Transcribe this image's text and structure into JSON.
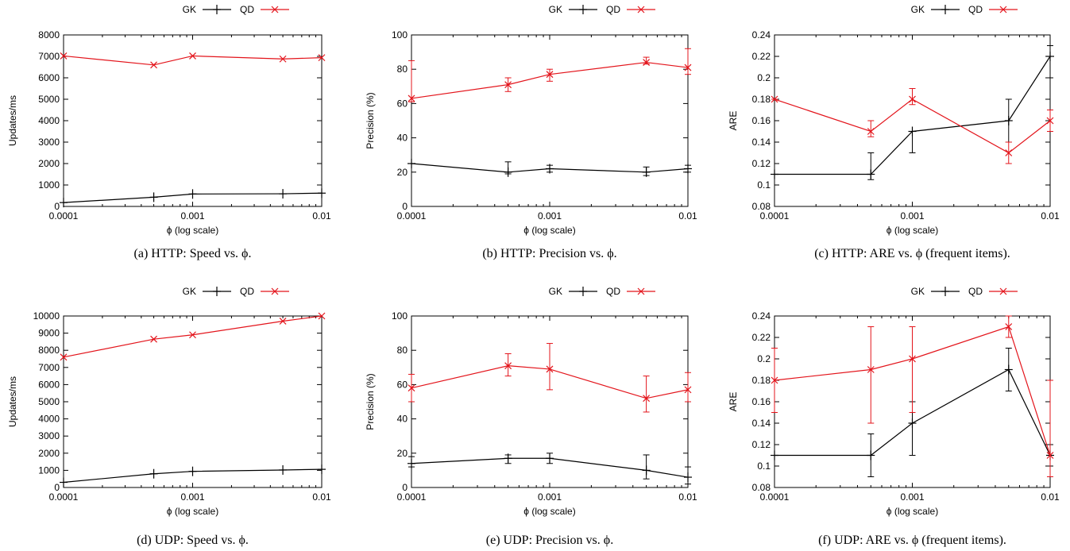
{
  "colors": {
    "gk": "#000000",
    "qd": "#e3141b",
    "axis": "#000000"
  },
  "legend": {
    "gk": "GK",
    "qd": "QD"
  },
  "chart_data": [
    {
      "type": "line",
      "caption": "(a)  HTTP: Speed vs. ϕ.",
      "xlabel": "ϕ (log scale)",
      "ylabel": "Updates/ms",
      "x_scale": "log",
      "xlim": [
        0.0001,
        0.01
      ],
      "ylim": [
        0,
        8000
      ],
      "x": [
        0.0001,
        0.0005,
        0.001,
        0.005,
        0.01
      ],
      "x_ticks": [
        "0.0001",
        "0.001",
        "0.01"
      ],
      "y_ticks": [
        "0",
        "1000",
        "2000",
        "3000",
        "4000",
        "5000",
        "6000",
        "7000",
        "8000"
      ],
      "series": [
        {
          "name": "GK",
          "values": [
            180,
            430,
            580,
            590,
            620
          ],
          "err": null
        },
        {
          "name": "QD",
          "values": [
            7020,
            6600,
            7020,
            6880,
            6940
          ],
          "err": null
        }
      ]
    },
    {
      "type": "line",
      "caption": "(b)  HTTP: Precision vs. ϕ.",
      "xlabel": "ϕ (log scale)",
      "ylabel": "Precision (%)",
      "x_scale": "log",
      "xlim": [
        0.0001,
        0.01
      ],
      "ylim": [
        0,
        100
      ],
      "x": [
        0.0001,
        0.0005,
        0.001,
        0.005,
        0.01
      ],
      "x_ticks": [
        "0.0001",
        "0.001",
        "0.01"
      ],
      "y_ticks": [
        "0",
        "20",
        "40",
        "60",
        "80",
        "100"
      ],
      "series": [
        {
          "name": "GK",
          "values": [
            25,
            20,
            22,
            20,
            22
          ],
          "err": [
            [
              25,
              25
            ],
            [
              19,
              26
            ],
            [
              20,
              24
            ],
            [
              18,
              23
            ],
            [
              20,
              24
            ]
          ]
        },
        {
          "name": "QD",
          "values": [
            63,
            71,
            77,
            84,
            81
          ],
          "err": [
            [
              61,
              85
            ],
            [
              67,
              75
            ],
            [
              73,
              80
            ],
            [
              83,
              87
            ],
            [
              77,
              92
            ]
          ]
        }
      ]
    },
    {
      "type": "line",
      "caption": "(c)  HTTP: ARE vs. ϕ (frequent items).",
      "xlabel": "ϕ (log scale)",
      "ylabel": "ARE",
      "x_scale": "log",
      "xlim": [
        0.0001,
        0.01
      ],
      "ylim": [
        0.08,
        0.24
      ],
      "x": [
        0.0001,
        0.0005,
        0.001,
        0.005,
        0.01
      ],
      "x_ticks": [
        "0.0001",
        "0.001",
        "0.01"
      ],
      "y_ticks": [
        "0.08",
        "0.1",
        "0.12",
        "0.14",
        "0.16",
        "0.18",
        "0.2",
        "0.22",
        "0.24"
      ],
      "series": [
        {
          "name": "GK",
          "values": [
            0.11,
            0.11,
            0.15,
            0.16,
            0.22
          ],
          "err": [
            [
              0.11,
              0.11
            ],
            [
              0.105,
              0.13
            ],
            [
              0.13,
              0.15
            ],
            [
              0.14,
              0.18
            ],
            [
              0.2,
              0.23
            ]
          ]
        },
        {
          "name": "QD",
          "values": [
            0.18,
            0.15,
            0.18,
            0.13,
            0.16
          ],
          "err": [
            [
              0.18,
              0.18
            ],
            [
              0.145,
              0.16
            ],
            [
              0.175,
              0.19
            ],
            [
              0.12,
              0.14
            ],
            [
              0.15,
              0.17
            ]
          ]
        }
      ]
    },
    {
      "type": "line",
      "caption": "(d)  UDP: Speed vs. ϕ.",
      "xlabel": "ϕ (log scale)",
      "ylabel": "Updates/ms",
      "x_scale": "log",
      "xlim": [
        0.0001,
        0.01
      ],
      "ylim": [
        0,
        10000
      ],
      "x": [
        0.0001,
        0.0005,
        0.001,
        0.005,
        0.01
      ],
      "x_ticks": [
        "0.0001",
        "0.001",
        "0.01"
      ],
      "y_ticks": [
        "0",
        "1000",
        "2000",
        "3000",
        "4000",
        "5000",
        "6000",
        "7000",
        "8000",
        "9000",
        "10000"
      ],
      "series": [
        {
          "name": "GK",
          "values": [
            300,
            800,
            940,
            1020,
            1060
          ],
          "err": null
        },
        {
          "name": "QD",
          "values": [
            7600,
            8650,
            8900,
            9700,
            10000
          ],
          "err": null
        }
      ]
    },
    {
      "type": "line",
      "caption": "(e)  UDP: Precision vs. ϕ.",
      "xlabel": "ϕ (log scale)",
      "ylabel": "Precision (%)",
      "x_scale": "log",
      "xlim": [
        0.0001,
        0.01
      ],
      "ylim": [
        0,
        100
      ],
      "x": [
        0.0001,
        0.0005,
        0.001,
        0.005,
        0.01
      ],
      "x_ticks": [
        "0.0001",
        "0.001",
        "0.01"
      ],
      "y_ticks": [
        "0",
        "20",
        "40",
        "60",
        "80",
        "100"
      ],
      "series": [
        {
          "name": "GK",
          "values": [
            14,
            17,
            17,
            10,
            6
          ],
          "err": [
            [
              12,
              18
            ],
            [
              14,
              19
            ],
            [
              14,
              20
            ],
            [
              5,
              19
            ],
            [
              2,
              12
            ]
          ]
        },
        {
          "name": "QD",
          "values": [
            58,
            71,
            69,
            52,
            57
          ],
          "err": [
            [
              50,
              66
            ],
            [
              65,
              78
            ],
            [
              57,
              84
            ],
            [
              44,
              65
            ],
            [
              50,
              67
            ]
          ]
        }
      ]
    },
    {
      "type": "line",
      "caption": "(f)  UDP: ARE vs. ϕ (frequent items).",
      "xlabel": "ϕ (log scale)",
      "ylabel": "ARE",
      "x_scale": "log",
      "xlim": [
        0.0001,
        0.01
      ],
      "ylim": [
        0.08,
        0.24
      ],
      "x": [
        0.0001,
        0.0005,
        0.001,
        0.005,
        0.01
      ],
      "x_ticks": [
        "0.0001",
        "0.001",
        "0.01"
      ],
      "y_ticks": [
        "0.08",
        "0.1",
        "0.12",
        "0.14",
        "0.16",
        "0.18",
        "0.2",
        "0.22",
        "0.24"
      ],
      "series": [
        {
          "name": "GK",
          "values": [
            0.11,
            0.11,
            0.14,
            0.19,
            0.11
          ],
          "err": [
            [
              0.11,
              0.11
            ],
            [
              0.09,
              0.13
            ],
            [
              0.11,
              0.16
            ],
            [
              0.17,
              0.21
            ],
            [
              0.1,
              0.12
            ]
          ]
        },
        {
          "name": "QD",
          "values": [
            0.18,
            0.19,
            0.2,
            0.23,
            0.11
          ],
          "err": [
            [
              0.15,
              0.21
            ],
            [
              0.14,
              0.23
            ],
            [
              0.15,
              0.23
            ],
            [
              0.22,
              0.24
            ],
            [
              0.09,
              0.18
            ]
          ]
        }
      ]
    }
  ]
}
